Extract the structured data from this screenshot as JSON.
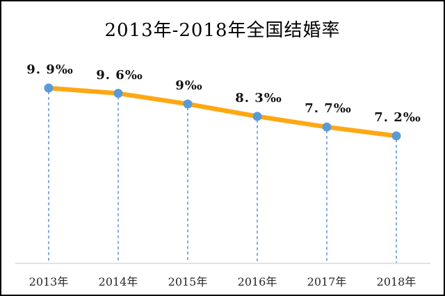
{
  "chart_data": {
    "type": "line",
    "title": "2013年-2018年全国结婚率",
    "categories": [
      "2013年",
      "2014年",
      "2015年",
      "2016年",
      "2017年",
      "2018年"
    ],
    "values": [
      9.9,
      9.6,
      9.0,
      8.3,
      7.7,
      7.2
    ],
    "point_labels": [
      "9. 9‰",
      "9. 6‰",
      "9‰",
      "8. 3‰",
      "7. 7‰",
      "7. 2‰"
    ],
    "unit": "‰",
    "xlabel": "",
    "ylabel": "",
    "ylim": [
      7.0,
      10.1
    ],
    "grid": false,
    "legend": "none",
    "colors": {
      "line": "#FFA713",
      "marker": "#5B9BD5",
      "dropline": "#7FACDF",
      "axis_line": "#D9D9D9",
      "data_label": "#111111",
      "tick_label": "#262626",
      "title": "#000000",
      "background": "#FFFFFF",
      "border": "#000000"
    }
  }
}
